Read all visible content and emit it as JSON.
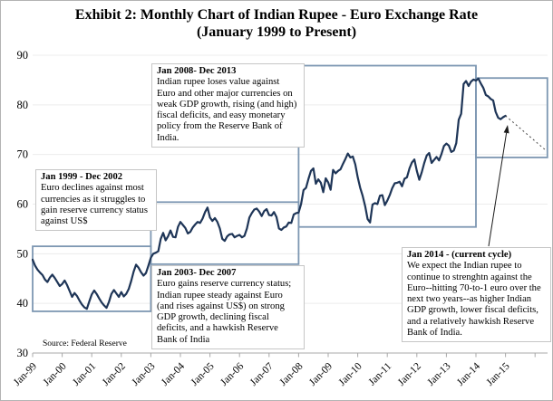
{
  "title": {
    "line1": "Exhibit 2: Monthly Chart of Indian Rupee - Euro Exchange Rate",
    "line2": "(January 1999 to Present)"
  },
  "source": "Source: Federal Reserve",
  "colors": {
    "line": "#1e3557",
    "cycle_box_border": "#7d97b2",
    "annotation_border": "#c6c6c6",
    "grid": "#ececec",
    "axis": "#a8a8a8",
    "projection": "#444444",
    "arrow": "#1a1a1a",
    "text": "#000000"
  },
  "y_axis": {
    "min": 30,
    "max": 90,
    "step": 10,
    "ticks": [
      90,
      80,
      70,
      60,
      50,
      40,
      30
    ]
  },
  "x_axis": {
    "labels": [
      "Jan-99",
      "Jan-00",
      "Jan-01",
      "Jan-02",
      "Jan-03",
      "Jan-04",
      "Jan-05",
      "Jan-06",
      "Jan-07",
      "Jan-08",
      "Jan-09",
      "Jan-10",
      "Jan-11",
      "Jan-12",
      "Jan-13",
      "Jan-14",
      "Jan-15"
    ]
  },
  "annotations": [
    {
      "title": "Jan 1999 - Dec 2002",
      "body": "Euro declines against most currencies as it struggles to gain reserve currency status against US$"
    },
    {
      "title": "Jan 2003- Dec 2007",
      "body": "Euro gains reserve currency status; Indian rupee steady against Euro (and rises against US$) on strong GDP growth, declining fiscal deficits, and a hawkish Reserve Bank of India"
    },
    {
      "title": "Jan 2008- Dec 2013",
      "body": "Indian rupee loses value against Euro and other major currencies on weak GDP growth, rising (and high) fiscal deficits, and easy monetary policy from the Reserve Bank of India."
    },
    {
      "title": "Jan 2014 - (current cycle)",
      "body": "We expect the Indian rupee to continue to strenghtn against the Euro--hitting 70-to-1 euro over the next two years--as higher Indian GDP growth, lower fiscal deficits, and a relatively hawkish Reserve Bank of India."
    }
  ],
  "chart_data": {
    "type": "line",
    "title": "Exhibit 2: Monthly Chart of Indian Rupee - Euro Exchange Rate (January 1999 to Present)",
    "xlabel": "",
    "ylabel": "",
    "ylim": [
      30,
      90
    ],
    "grid": "horizontal",
    "frequency": "monthly",
    "x_start": "Jan-1999",
    "x_end": "Jan-2015",
    "values": [
      48.8,
      47.6,
      46.8,
      46.2,
      45.7,
      44.8,
      44.3,
      45.2,
      45.8,
      45.1,
      44.3,
      43.5,
      43.9,
      44.6,
      43.7,
      42.5,
      41.3,
      42.1,
      41.5,
      40.6,
      39.8,
      39.2,
      38.9,
      40.4,
      41.8,
      42.6,
      41.9,
      41.0,
      40.2,
      39.6,
      39.1,
      40.3,
      41.9,
      42.7,
      42.0,
      41.3,
      42.3,
      41.4,
      41.9,
      42.9,
      44.5,
      46.4,
      47.8,
      47.2,
      46.3,
      45.6,
      46.1,
      47.6,
      49.2,
      50.0,
      50.2,
      50.5,
      53.0,
      54.2,
      52.7,
      53.5,
      54.7,
      53.4,
      53.3,
      55.4,
      56.4,
      55.8,
      55.2,
      54.1,
      54.4,
      55.3,
      55.9,
      56.4,
      56.2,
      57.1,
      58.4,
      59.3,
      57.3,
      56.6,
      57.2,
      56.4,
      55.1,
      53.0,
      52.6,
      53.5,
      53.9,
      54.0,
      53.3,
      53.6,
      53.8,
      53.3,
      53.6,
      55.1,
      57.3,
      58.2,
      58.9,
      59.1,
      58.5,
      57.6,
      58.6,
      59.0,
      57.8,
      57.7,
      58.4,
      57.4,
      55.1,
      54.8,
      55.3,
      55.5,
      56.3,
      56.2,
      57.9,
      58.2,
      58.3,
      60.0,
      62.8,
      63.3,
      65.1,
      66.7,
      67.2,
      64.1,
      65.0,
      64.3,
      62.4,
      65.2,
      64.4,
      62.9,
      66.9,
      66.2,
      66.7,
      67.0,
      68.1,
      69.1,
      70.2,
      69.4,
      69.6,
      68.0,
      65.4,
      63.3,
      61.7,
      59.6,
      57.0,
      56.3,
      59.9,
      60.2,
      60.0,
      61.7,
      61.8,
      59.8,
      60.7,
      61.8,
      63.2,
      64.2,
      64.3,
      64.5,
      63.6,
      65.1,
      65.4,
      67.2,
      68.4,
      69.0,
      66.7,
      64.9,
      66.4,
      68.3,
      69.8,
      70.3,
      68.3,
      68.9,
      69.5,
      68.8,
      70.1,
      71.7,
      72.2,
      71.8,
      70.5,
      70.8,
      72.3,
      77.0,
      78.2,
      84.2,
      84.8,
      83.8,
      84.7,
      85.1,
      84.9,
      85.3,
      84.3,
      83.4,
      82.0,
      81.7,
      81.2,
      80.9,
      78.6,
      77.4,
      77.1,
      77.5,
      77.8
    ],
    "projection": {
      "style": "dotted",
      "from_month_index": 192,
      "from_value": 77.8,
      "to_month_index": 208,
      "to_value": 71.0,
      "meaning": "expected path toward 70-to-1 euro"
    },
    "cycle_boxes": [
      {
        "label": "Jan 1999 - Dec 2002",
        "m0": 0,
        "m1": 48,
        "v_low": 38.4,
        "v_high": 51.5
      },
      {
        "label": "Jan 2003 - Dec 2007",
        "m0": 48,
        "m1": 108,
        "v_low": 47.9,
        "v_high": 60.4
      },
      {
        "label": "Jan 2008 - Dec 2013",
        "m0": 108,
        "m1": 180,
        "v_low": 55.4,
        "v_high": 87.9
      },
      {
        "label": "Jan 2014 - current",
        "m0": 180,
        "m1": 209,
        "v_low": 69.4,
        "v_high": 85.4
      }
    ]
  }
}
